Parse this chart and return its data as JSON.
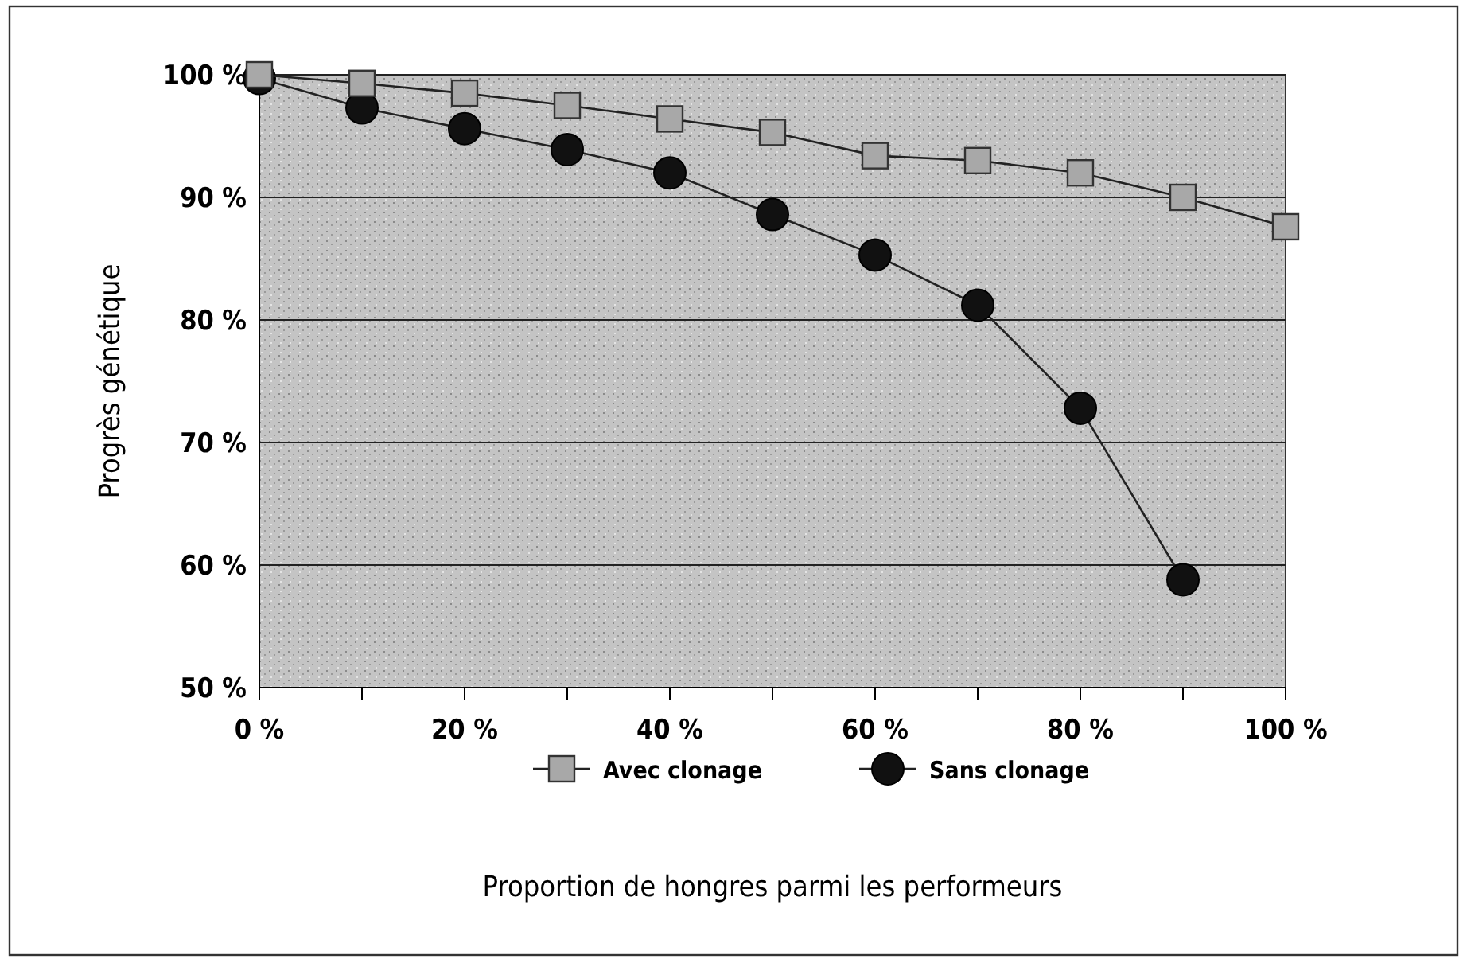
{
  "chart_data": {
    "type": "line",
    "xlabel": "Proportion de hongres parmi les performeurs",
    "ylabel": "Progrès génétique",
    "x": [
      0,
      10,
      20,
      30,
      40,
      50,
      60,
      70,
      80,
      90,
      100
    ],
    "series": [
      {
        "name": "Avec clonage",
        "color": "#a8a8a8",
        "marker": "square",
        "values": [
          100,
          99.3,
          98.5,
          97.5,
          96.4,
          95.3,
          93.4,
          93.0,
          92.0,
          90.0,
          87.6
        ]
      },
      {
        "name": "Sans clonage",
        "color": "#111111",
        "marker": "circle",
        "values": [
          99.7,
          97.3,
          95.6,
          93.9,
          92.0,
          88.6,
          85.3,
          81.2,
          72.8,
          58.8,
          null
        ]
      }
    ],
    "xlim": [
      0,
      100
    ],
    "ylim": [
      50,
      100
    ],
    "xticks": [
      {
        "value": 0,
        "label": "0 %"
      },
      {
        "value": 10,
        "label": null
      },
      {
        "value": 20,
        "label": "20 %"
      },
      {
        "value": 30,
        "label": null
      },
      {
        "value": 40,
        "label": "40 %"
      },
      {
        "value": 50,
        "label": null
      },
      {
        "value": 60,
        "label": "60 %"
      },
      {
        "value": 70,
        "label": null
      },
      {
        "value": 80,
        "label": "80 %"
      },
      {
        "value": 90,
        "label": null
      },
      {
        "value": 100,
        "label": "100 %"
      }
    ],
    "yticks": [
      {
        "value": 50,
        "label": "50 %"
      },
      {
        "value": 60,
        "label": "60 %"
      },
      {
        "value": 70,
        "label": "70 %"
      },
      {
        "value": 80,
        "label": "80 %"
      },
      {
        "value": 90,
        "label": "90 %"
      },
      {
        "value": 100,
        "label": "100 %"
      }
    ],
    "grid": "y",
    "legend": "bottom",
    "line_style": "solid"
  }
}
